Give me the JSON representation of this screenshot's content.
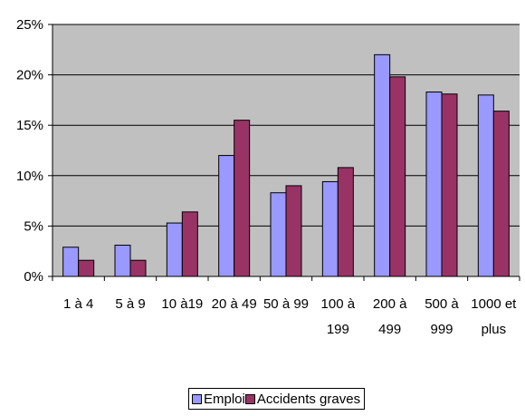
{
  "chart_data": {
    "type": "bar",
    "title": "",
    "xlabel": "",
    "ylabel": "",
    "categories": [
      [
        "1 à 4"
      ],
      [
        "5 à 9"
      ],
      [
        "10 à19"
      ],
      [
        "20 à 49"
      ],
      [
        "50 à 99"
      ],
      [
        "100 à",
        "199"
      ],
      [
        "200 à",
        "499"
      ],
      [
        "500 à",
        "999"
      ],
      [
        "1000 et",
        "plus"
      ]
    ],
    "series": [
      {
        "name": "Emploi",
        "color": "#9999ff",
        "values": [
          2.9,
          3.1,
          5.3,
          12.0,
          8.3,
          9.4,
          22.0,
          18.3,
          18.0
        ]
      },
      {
        "name": "Accidents graves",
        "color": "#993366",
        "values": [
          1.6,
          1.6,
          6.4,
          15.5,
          9.0,
          10.8,
          19.8,
          18.1,
          16.4
        ]
      }
    ],
    "ylim": [
      0,
      25
    ],
    "yticks": [
      0,
      5,
      10,
      15,
      20,
      25
    ],
    "ytick_format": "percent",
    "grid": "y-major",
    "plot_background": "#c0c0c0",
    "legend_position": "bottom"
  }
}
